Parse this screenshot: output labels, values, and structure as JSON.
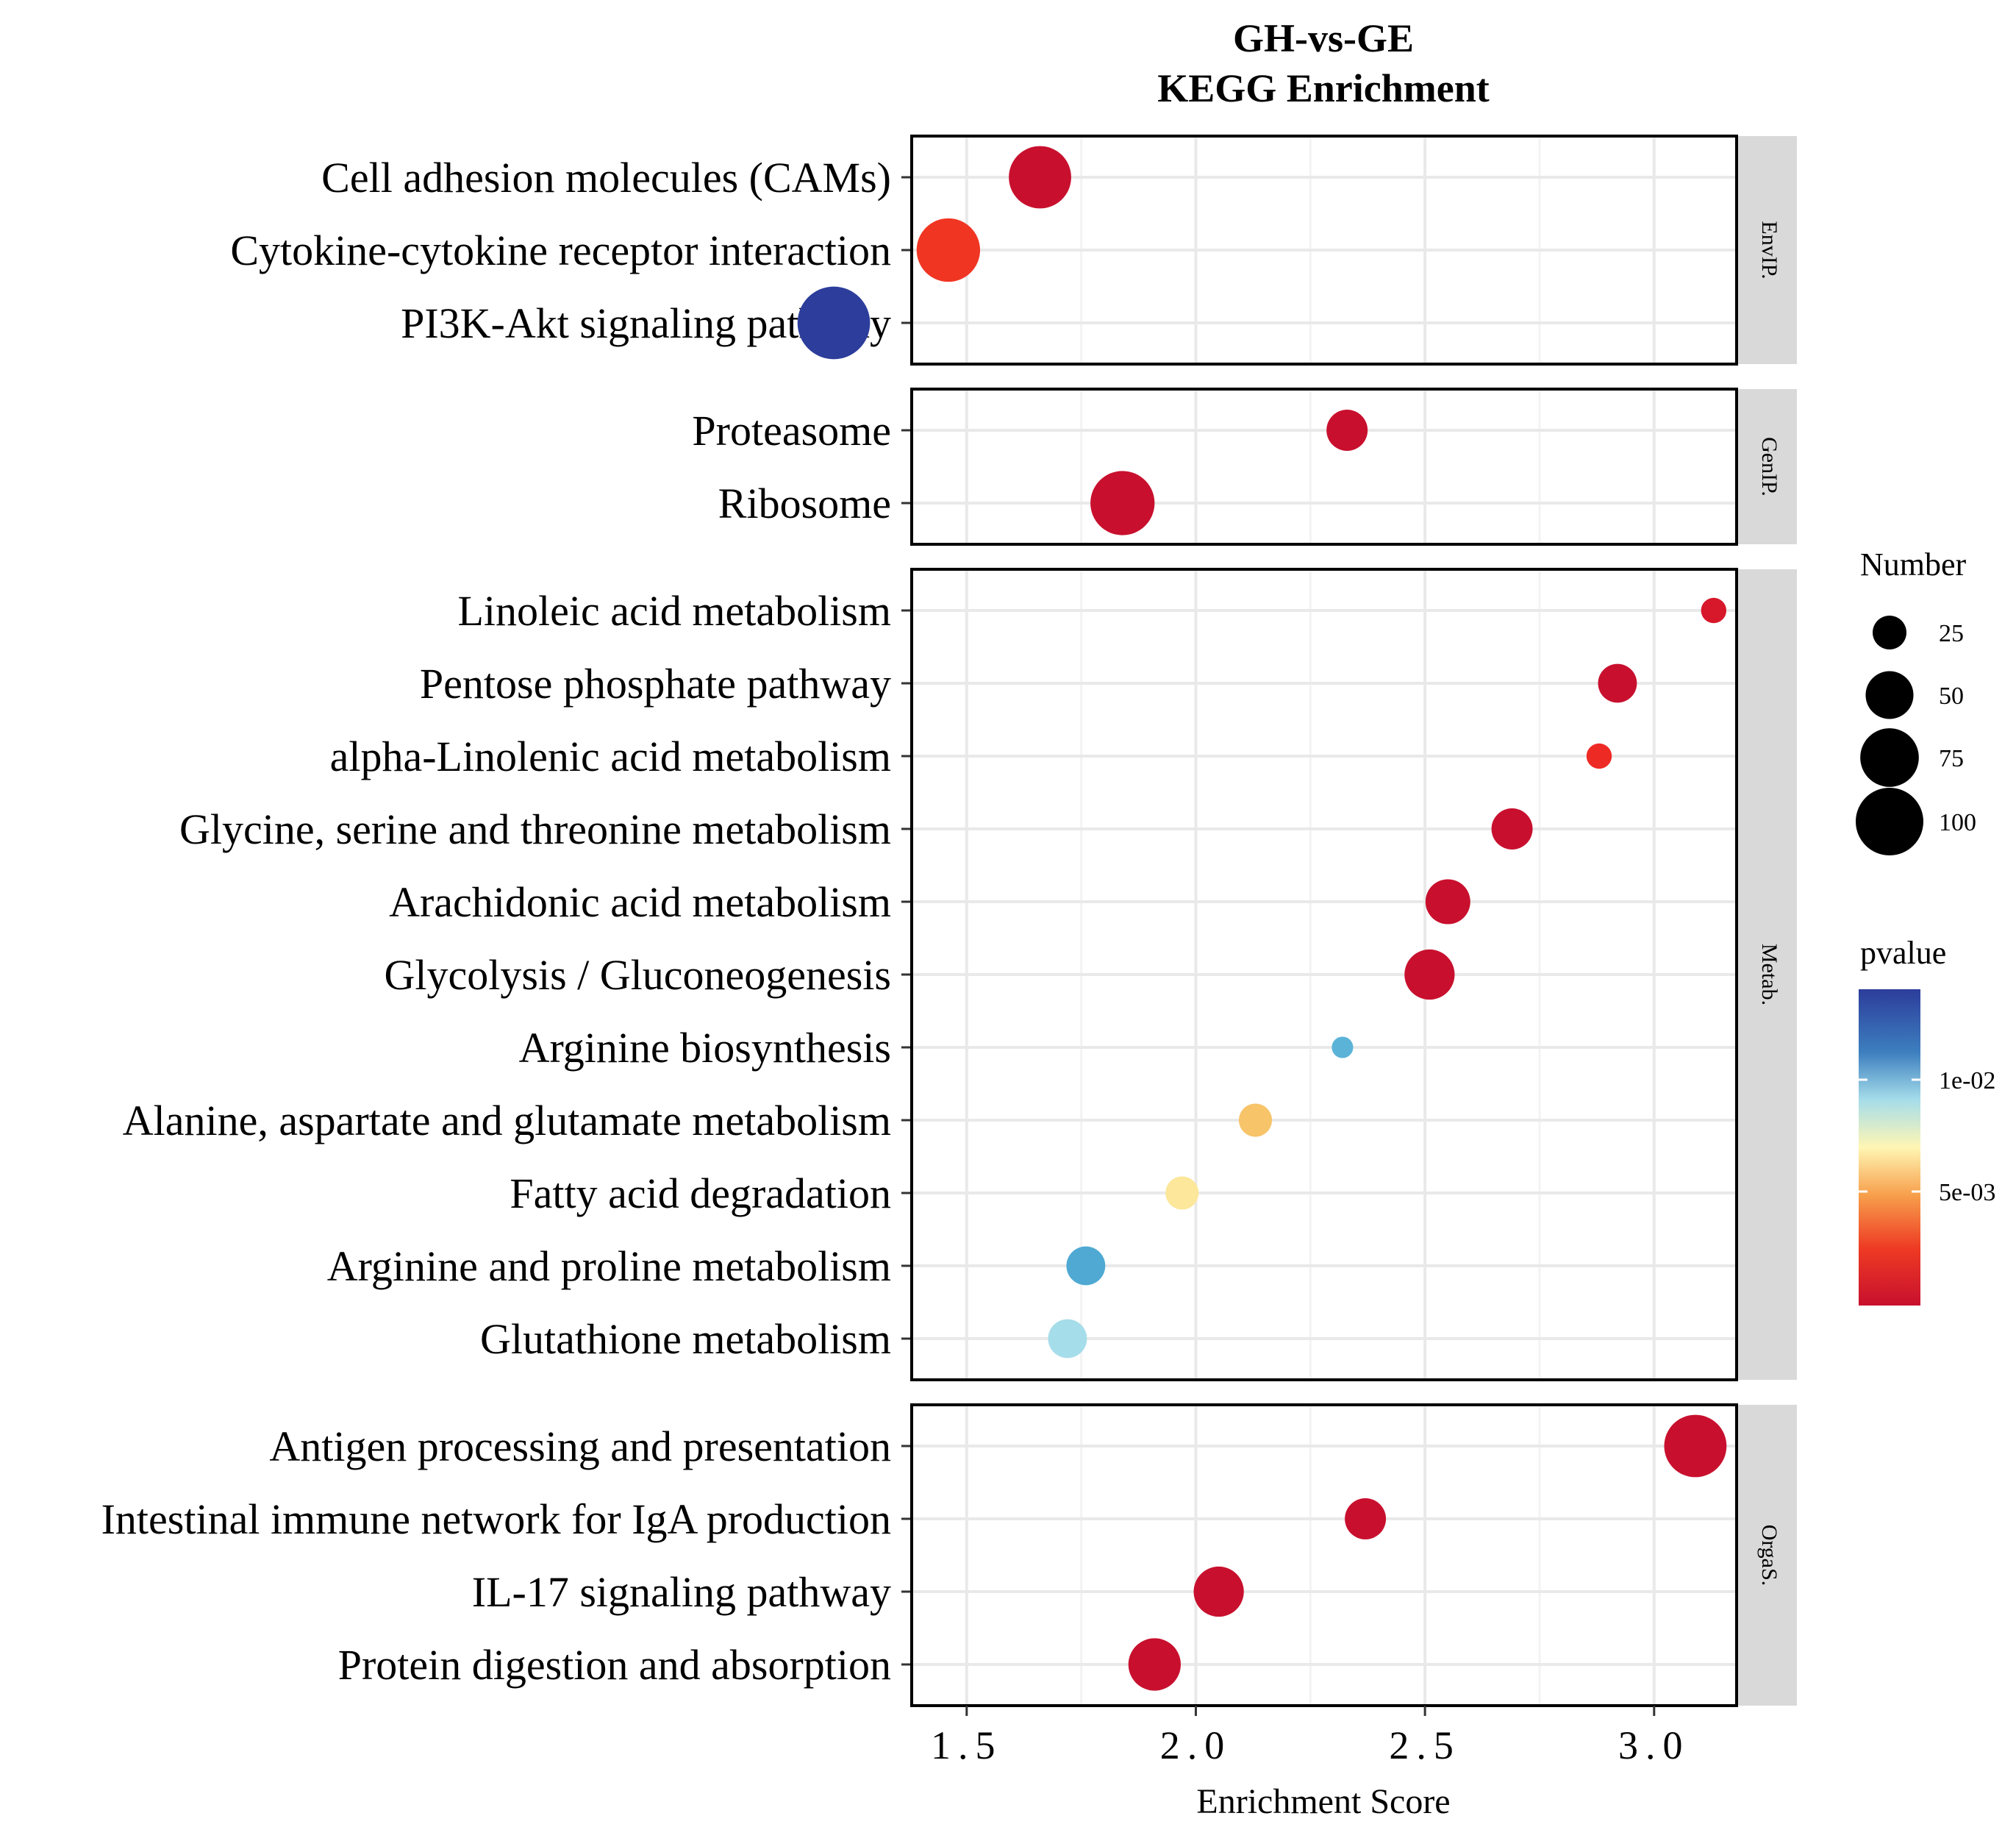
{
  "chart_data": {
    "type": "scatter",
    "title": "GH-vs-GE",
    "subtitle": "KEGG Enrichment",
    "xlabel": "Enrichment Score",
    "xlim": [
      1.38,
      3.18
    ],
    "xticks": [
      1.5,
      2.0,
      2.5,
      3.0
    ],
    "xtick_labels": [
      "1.5",
      "2.0",
      "2.5",
      "3.0"
    ],
    "grid": true,
    "panels": [
      {
        "label": "EnvIP.",
        "terms": [
          {
            "name": "Cell adhesion molecules (CAMs)",
            "score": 1.66,
            "number": 85,
            "color": "#c8102e"
          },
          {
            "name": "Cytokine-cytokine receptor interaction",
            "score": 1.46,
            "number": 88,
            "color": "#f03523"
          },
          {
            "name": "PI3K-Akt signaling pathway",
            "score": 1.21,
            "number": 115,
            "color": "#2c3d9b"
          }
        ]
      },
      {
        "label": "GenIP.",
        "terms": [
          {
            "name": "Proteasome",
            "score": 2.33,
            "number": 37,
            "color": "#c8102e"
          },
          {
            "name": "Ribosome",
            "score": 1.84,
            "number": 90,
            "color": "#c8102e"
          }
        ]
      },
      {
        "label": "Metab.",
        "terms": [
          {
            "name": "Linoleic acid metabolism",
            "score": 3.13,
            "number": 14,
            "color": "#d7182a"
          },
          {
            "name": "Pentose phosphate pathway",
            "score": 2.92,
            "number": 33,
            "color": "#c8102e"
          },
          {
            "name": "alpha-Linolenic acid metabolism",
            "score": 2.88,
            "number": 14,
            "color": "#ee2a24"
          },
          {
            "name": "Glycine, serine and threonine metabolism",
            "score": 2.69,
            "number": 37,
            "color": "#c8102e"
          },
          {
            "name": "Arachidonic acid metabolism",
            "score": 2.55,
            "number": 44,
            "color": "#c8102e"
          },
          {
            "name": "Glycolysis / Gluconeogenesis",
            "score": 2.51,
            "number": 55,
            "color": "#c8102e"
          },
          {
            "name": "Arginine biosynthesis",
            "score": 2.32,
            "number": 10,
            "color": "#5bb3d8"
          },
          {
            "name": "Alanine, aspartate and glutamate metabolism",
            "score": 2.13,
            "number": 24,
            "color": "#f7c46a"
          },
          {
            "name": "Fatty acid degradation",
            "score": 1.97,
            "number": 24,
            "color": "#fce79a"
          },
          {
            "name": "Arginine and proline metabolism",
            "score": 1.76,
            "number": 33,
            "color": "#4fa9d3"
          },
          {
            "name": "Glutathione metabolism",
            "score": 1.72,
            "number": 33,
            "color": "#a6ddea"
          }
        ]
      },
      {
        "label": "OrgaS.",
        "terms": [
          {
            "name": "Antigen processing and presentation",
            "score": 3.09,
            "number": 85,
            "color": "#c8102e"
          },
          {
            "name": "Intestinal immune network for IgA production",
            "score": 2.37,
            "number": 37,
            "color": "#c8102e"
          },
          {
            "name": "IL-17 signaling pathway",
            "score": 2.05,
            "number": 55,
            "color": "#c8102e"
          },
          {
            "name": "Protein digestion and absorption",
            "score": 1.91,
            "number": 60,
            "color": "#c8102e"
          }
        ]
      }
    ],
    "size_legend": {
      "title": "Number",
      "values": [
        25,
        50,
        75,
        100
      ],
      "labels": [
        "25",
        "50",
        "75",
        "100"
      ]
    },
    "color_legend": {
      "title": "pvalue",
      "tick_labels": [
        "1e-02",
        "5e-03"
      ],
      "gradient": [
        "#2c3d9b",
        "#3d7fbf",
        "#a6ddea",
        "#fff6b4",
        "#f7a04c",
        "#ee3a23",
        "#c8102e"
      ]
    }
  }
}
